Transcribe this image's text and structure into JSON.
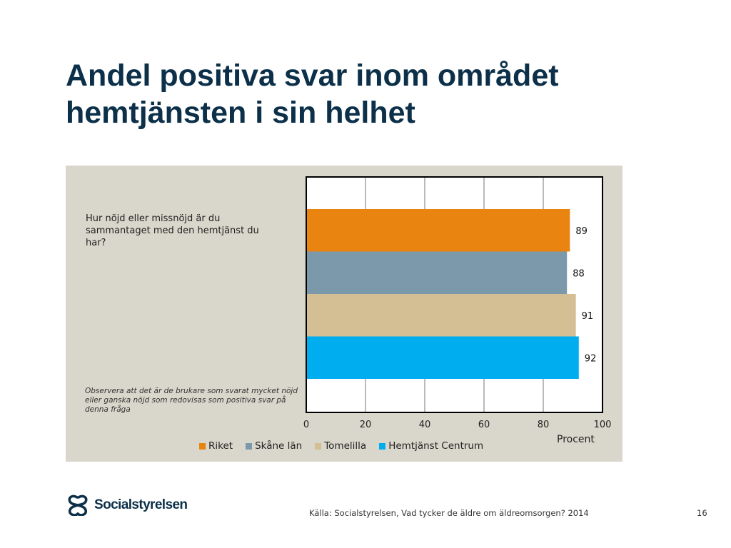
{
  "slide": {
    "title_line1": "Andel positiva svar inom området",
    "title_line2": "hemtjänsten i sin helhet",
    "source": "Källa: Socialstyrelsen, Vad tycker de äldre om äldreomsorgen? 2014",
    "page_number": "16",
    "logo_text": "Socialstyrelsen",
    "logo_icon": "socialstyrelsen-logo-mark"
  },
  "chart_data": {
    "type": "bar",
    "orientation": "horizontal",
    "question": "Hur nöjd eller missnöjd är du sammantaget med den hemtjänst du har?",
    "note": "Observera att det är de brukare som svarat mycket nöjd eller ganska nöjd som redovisas som positiva svar på denna fråga",
    "xlabel": "Procent",
    "xlim": [
      0,
      100
    ],
    "xticks": [
      "0",
      "20",
      "40",
      "60",
      "80",
      "100"
    ],
    "grid": true,
    "legend_position": "bottom",
    "series": [
      {
        "name": "Riket",
        "value": 89,
        "label": "89",
        "color": "#e8840f"
      },
      {
        "name": "Skåne län",
        "value": 88,
        "label": "88",
        "color": "#7b99ab"
      },
      {
        "name": "Tomelilla",
        "value": 91,
        "label": "91",
        "color": "#d4bf95"
      },
      {
        "name": "Hemtjänst Centrum",
        "value": 92,
        "label": "92",
        "color": "#00aeef"
      }
    ]
  }
}
